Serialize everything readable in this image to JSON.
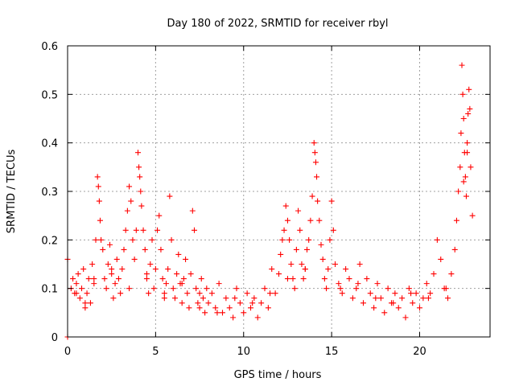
{
  "chart_data": {
    "type": "scatter",
    "title": "Day 180 of 2022, SRMTID for receiver rbyl",
    "xlabel": "GPS time / hours",
    "ylabel": "SRMTID / TECUs",
    "xlim": [
      0,
      24
    ],
    "ylim": [
      0,
      0.6
    ],
    "x_ticks": [
      0,
      5,
      10,
      15,
      20
    ],
    "x_tick_labels": [
      "0",
      "5",
      "10",
      "15",
      "20"
    ],
    "y_ticks": [
      0,
      0.1,
      0.2,
      0.3,
      0.4,
      0.5,
      0.6
    ],
    "y_tick_labels": [
      "0",
      "0.1",
      "0.2",
      "0.3",
      "0.4",
      "0.5",
      "0.6"
    ],
    "grid": true,
    "marker": "+",
    "series": [
      {
        "name": "SRMTID",
        "color": "#ff0000",
        "x": [
          0.0,
          0.0,
          0.2,
          0.3,
          0.4,
          0.5,
          0.6,
          0.7,
          0.8,
          0.9,
          1.0,
          1.1,
          1.2,
          1.3,
          1.4,
          1.5,
          1.6,
          1.7,
          1.75,
          1.8,
          1.85,
          1.9,
          2.0,
          2.1,
          2.2,
          2.3,
          2.4,
          2.5,
          2.6,
          2.7,
          2.8,
          2.9,
          3.0,
          3.1,
          3.2,
          3.3,
          3.4,
          3.5,
          3.6,
          3.7,
          3.8,
          3.9,
          4.0,
          4.05,
          4.1,
          4.15,
          4.2,
          4.3,
          4.4,
          4.5,
          4.6,
          4.7,
          4.8,
          4.9,
          5.0,
          5.1,
          5.2,
          5.3,
          5.4,
          5.5,
          5.6,
          5.7,
          5.8,
          5.9,
          6.0,
          6.1,
          6.2,
          6.3,
          6.4,
          6.5,
          6.6,
          6.7,
          6.8,
          6.9,
          7.0,
          7.1,
          7.2,
          7.3,
          7.4,
          7.5,
          7.6,
          7.7,
          7.8,
          7.9,
          8.0,
          8.2,
          8.4,
          8.6,
          8.8,
          9.0,
          9.2,
          9.4,
          9.6,
          9.8,
          10.0,
          10.2,
          10.4,
          10.6,
          10.8,
          11.0,
          11.2,
          11.4,
          11.6,
          11.8,
          12.0,
          12.1,
          12.2,
          12.3,
          12.4,
          12.5,
          12.6,
          12.7,
          12.8,
          12.9,
          13.0,
          13.1,
          13.2,
          13.3,
          13.4,
          13.5,
          13.6,
          13.7,
          13.8,
          13.9,
          14.0,
          14.05,
          14.1,
          14.15,
          14.2,
          14.3,
          14.4,
          14.5,
          14.6,
          14.7,
          14.8,
          14.9,
          15.0,
          15.1,
          15.2,
          15.4,
          15.6,
          15.8,
          16.0,
          16.2,
          16.4,
          16.6,
          16.8,
          17.0,
          17.2,
          17.4,
          17.6,
          17.8,
          18.0,
          18.2,
          18.4,
          18.6,
          18.8,
          19.0,
          19.2,
          19.4,
          19.6,
          19.8,
          20.0,
          20.2,
          20.4,
          20.6,
          20.8,
          21.0,
          21.2,
          21.4,
          21.6,
          21.8,
          22.0,
          22.1,
          22.2,
          22.3,
          22.35,
          22.4,
          22.45,
          22.5,
          22.55,
          22.6,
          22.65,
          22.7,
          22.75,
          22.8,
          22.85,
          22.9,
          23.0,
          0.5,
          1.0,
          1.5,
          2.5,
          3.5,
          4.5,
          5.5,
          6.5,
          7.5,
          8.5,
          9.5,
          10.5,
          11.5,
          12.5,
          13.5,
          15.5,
          16.5,
          17.5,
          18.5,
          19.5,
          20.5,
          21.5,
          22.5,
          22.7
        ],
        "y": [
          0.0,
          0.16,
          0.1,
          0.12,
          0.09,
          0.11,
          0.13,
          0.08,
          0.1,
          0.14,
          0.06,
          0.09,
          0.12,
          0.07,
          0.15,
          0.11,
          0.2,
          0.33,
          0.31,
          0.28,
          0.24,
          0.2,
          0.18,
          0.12,
          0.1,
          0.15,
          0.19,
          0.13,
          0.08,
          0.11,
          0.16,
          0.12,
          0.09,
          0.14,
          0.18,
          0.22,
          0.26,
          0.31,
          0.28,
          0.2,
          0.16,
          0.22,
          0.38,
          0.35,
          0.33,
          0.3,
          0.27,
          0.22,
          0.18,
          0.12,
          0.09,
          0.15,
          0.2,
          0.1,
          0.14,
          0.22,
          0.25,
          0.18,
          0.12,
          0.09,
          0.11,
          0.14,
          0.29,
          0.2,
          0.1,
          0.08,
          0.13,
          0.17,
          0.11,
          0.07,
          0.12,
          0.16,
          0.09,
          0.06,
          0.13,
          0.26,
          0.22,
          0.1,
          0.07,
          0.09,
          0.12,
          0.08,
          0.05,
          0.1,
          0.07,
          0.09,
          0.06,
          0.11,
          0.05,
          0.08,
          0.06,
          0.04,
          0.1,
          0.07,
          0.05,
          0.09,
          0.06,
          0.08,
          0.04,
          0.07,
          0.1,
          0.06,
          0.14,
          0.09,
          0.13,
          0.17,
          0.2,
          0.22,
          0.27,
          0.24,
          0.2,
          0.15,
          0.12,
          0.1,
          0.18,
          0.26,
          0.22,
          0.15,
          0.12,
          0.14,
          0.18,
          0.2,
          0.24,
          0.29,
          0.4,
          0.38,
          0.36,
          0.33,
          0.28,
          0.24,
          0.19,
          0.16,
          0.12,
          0.1,
          0.14,
          0.2,
          0.28,
          0.22,
          0.15,
          0.11,
          0.09,
          0.14,
          0.12,
          0.08,
          0.1,
          0.15,
          0.07,
          0.12,
          0.09,
          0.06,
          0.11,
          0.08,
          0.05,
          0.1,
          0.07,
          0.09,
          0.06,
          0.08,
          0.04,
          0.1,
          0.07,
          0.09,
          0.06,
          0.08,
          0.11,
          0.09,
          0.13,
          0.2,
          0.16,
          0.1,
          0.08,
          0.13,
          0.18,
          0.24,
          0.3,
          0.35,
          0.42,
          0.56,
          0.5,
          0.45,
          0.38,
          0.33,
          0.29,
          0.4,
          0.46,
          0.51,
          0.47,
          0.35,
          0.25,
          0.09,
          0.07,
          0.12,
          0.14,
          0.1,
          0.13,
          0.08,
          0.11,
          0.06,
          0.05,
          0.08,
          0.07,
          0.09,
          0.12,
          0.14,
          0.1,
          0.11,
          0.08,
          0.07,
          0.09,
          0.08,
          0.1,
          0.32,
          0.38
        ]
      }
    ]
  }
}
